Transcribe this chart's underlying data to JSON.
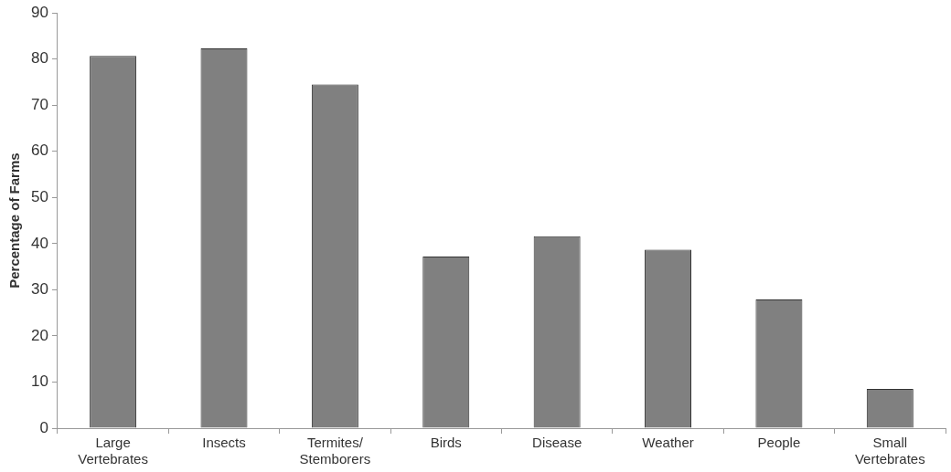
{
  "chart_data": {
    "type": "bar",
    "ylabel": "Percentage of Farms",
    "categories": [
      "Large Vertebrates",
      "Insects",
      "Termites/ Stemborers",
      "Birds",
      "Disease",
      "Weather",
      "People",
      "Small Vertebrates"
    ],
    "values": [
      80.7,
      82.3,
      74.5,
      37.2,
      41.6,
      38.7,
      27.9,
      8.5
    ],
    "color": "#808080",
    "ylim": [
      0,
      90
    ],
    "yticks": [
      0,
      10,
      20,
      30,
      40,
      50,
      60,
      70,
      80,
      90
    ],
    "grid": false,
    "legend": false
  }
}
